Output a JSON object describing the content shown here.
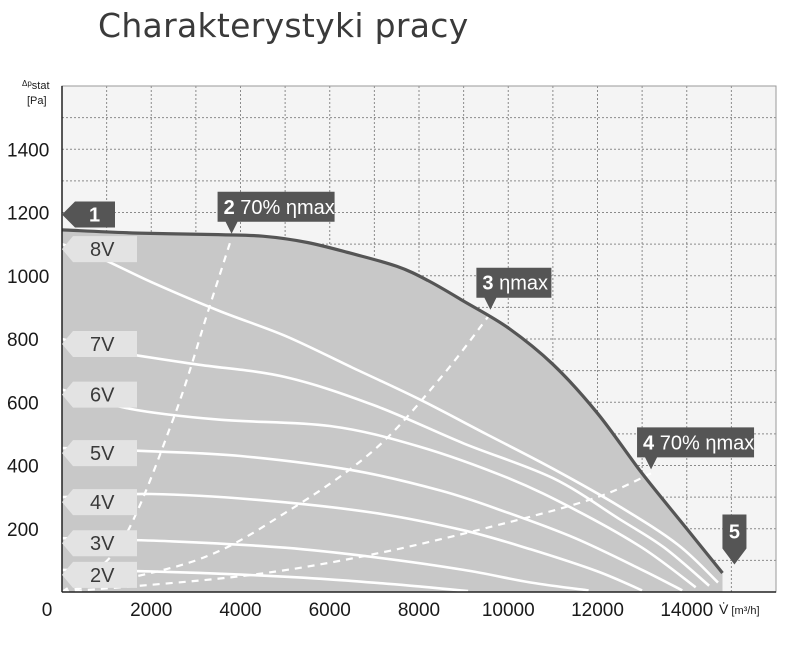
{
  "title": "Charakterystyki pracy",
  "chart_data": {
    "type": "line",
    "title": "Charakterystyki pracy",
    "ylabel": "Δp stat [Pa]",
    "ylabel_top": "Δp",
    "ylabel_sub": "stat",
    "ylabel_unit": "[Pa]",
    "xlabel": "V̇ [m³/h]",
    "xlabel_symbol": "V̇",
    "xlabel_unit": "[m³/h]",
    "xlim": [
      0,
      16000
    ],
    "ylim": [
      0,
      1600
    ],
    "x_ticks": [
      0,
      2000,
      4000,
      6000,
      8000,
      10000,
      12000,
      14000
    ],
    "y_ticks": [
      200,
      400,
      600,
      800,
      1000,
      1200,
      1400
    ],
    "grid": true,
    "envelope": {
      "x": [
        0,
        1700,
        3500,
        4500,
        5500,
        6500,
        7500,
        8200,
        9000,
        10000,
        11000,
        12000,
        13000,
        14000,
        14800
      ],
      "y": [
        1145,
        1135,
        1130,
        1125,
        1105,
        1070,
        1030,
        985,
        920,
        835,
        720,
        565,
        375,
        200,
        60
      ]
    },
    "series": [
      {
        "name": "8V",
        "x": [
          0,
          800,
          2000,
          3500,
          5000,
          6500,
          8000,
          9500,
          11000,
          12500,
          13800,
          14700
        ],
        "y": [
          1100,
          1060,
          980,
          890,
          810,
          710,
          610,
          500,
          390,
          270,
          150,
          30
        ]
      },
      {
        "name": "7V",
        "x": [
          0,
          1200,
          3000,
          5000,
          7000,
          9000,
          11000,
          12500,
          13500,
          14500
        ],
        "y": [
          800,
          760,
          720,
          680,
          590,
          470,
          360,
          230,
          140,
          20
        ]
      },
      {
        "name": "6V",
        "x": [
          0,
          1500,
          3500,
          6000,
          8000,
          10000,
          11500,
          13000,
          14200
        ],
        "y": [
          640,
          580,
          545,
          525,
          460,
          360,
          260,
          140,
          15
        ]
      },
      {
        "name": "5V",
        "x": [
          0,
          2000,
          4000,
          6500,
          8500,
          10000,
          11500,
          13000,
          13900
        ],
        "y": [
          455,
          445,
          430,
          385,
          320,
          250,
          170,
          70,
          5
        ]
      },
      {
        "name": "4V",
        "x": [
          0,
          2000,
          4500,
          7000,
          9000,
          10500,
          12000,
          13000
        ],
        "y": [
          300,
          310,
          290,
          250,
          195,
          135,
          65,
          5
        ]
      },
      {
        "name": "3V",
        "x": [
          0,
          2500,
          5000,
          7000,
          9000,
          10500,
          11800
        ],
        "y": [
          170,
          160,
          140,
          110,
          70,
          30,
          5
        ]
      },
      {
        "name": "2V",
        "x": [
          0,
          2000,
          4000,
          6000,
          7800,
          9100
        ],
        "y": [
          70,
          65,
          55,
          40,
          20,
          3
        ]
      }
    ],
    "efficiency_lines": [
      {
        "label": "70% ηmax",
        "x": [
          0,
          1300,
          2500,
          3300,
          3800
        ],
        "y": [
          0,
          150,
          550,
          900,
          1120
        ]
      },
      {
        "label": "ηmax",
        "x": [
          0,
          3000,
          5000,
          7000,
          8500,
          9600
        ],
        "y": [
          0,
          100,
          250,
          450,
          680,
          880
        ]
      },
      {
        "label": "70% ηmax",
        "x": [
          0,
          4000,
          7000,
          10000,
          12000,
          13200
        ],
        "y": [
          0,
          50,
          120,
          220,
          300,
          375
        ]
      }
    ],
    "markers": [
      {
        "num": "1",
        "text": "",
        "x": 0,
        "y": 1200
      },
      {
        "num": "2",
        "text": "70% ηmax",
        "x": 3800,
        "y": 1120
      },
      {
        "num": "3",
        "text": "ηmax",
        "x": 9600,
        "y": 880
      },
      {
        "num": "4",
        "text": "70% ηmax",
        "x": 13200,
        "y": 375
      },
      {
        "num": "5",
        "text": "",
        "x": 14800,
        "y": 0
      }
    ]
  }
}
